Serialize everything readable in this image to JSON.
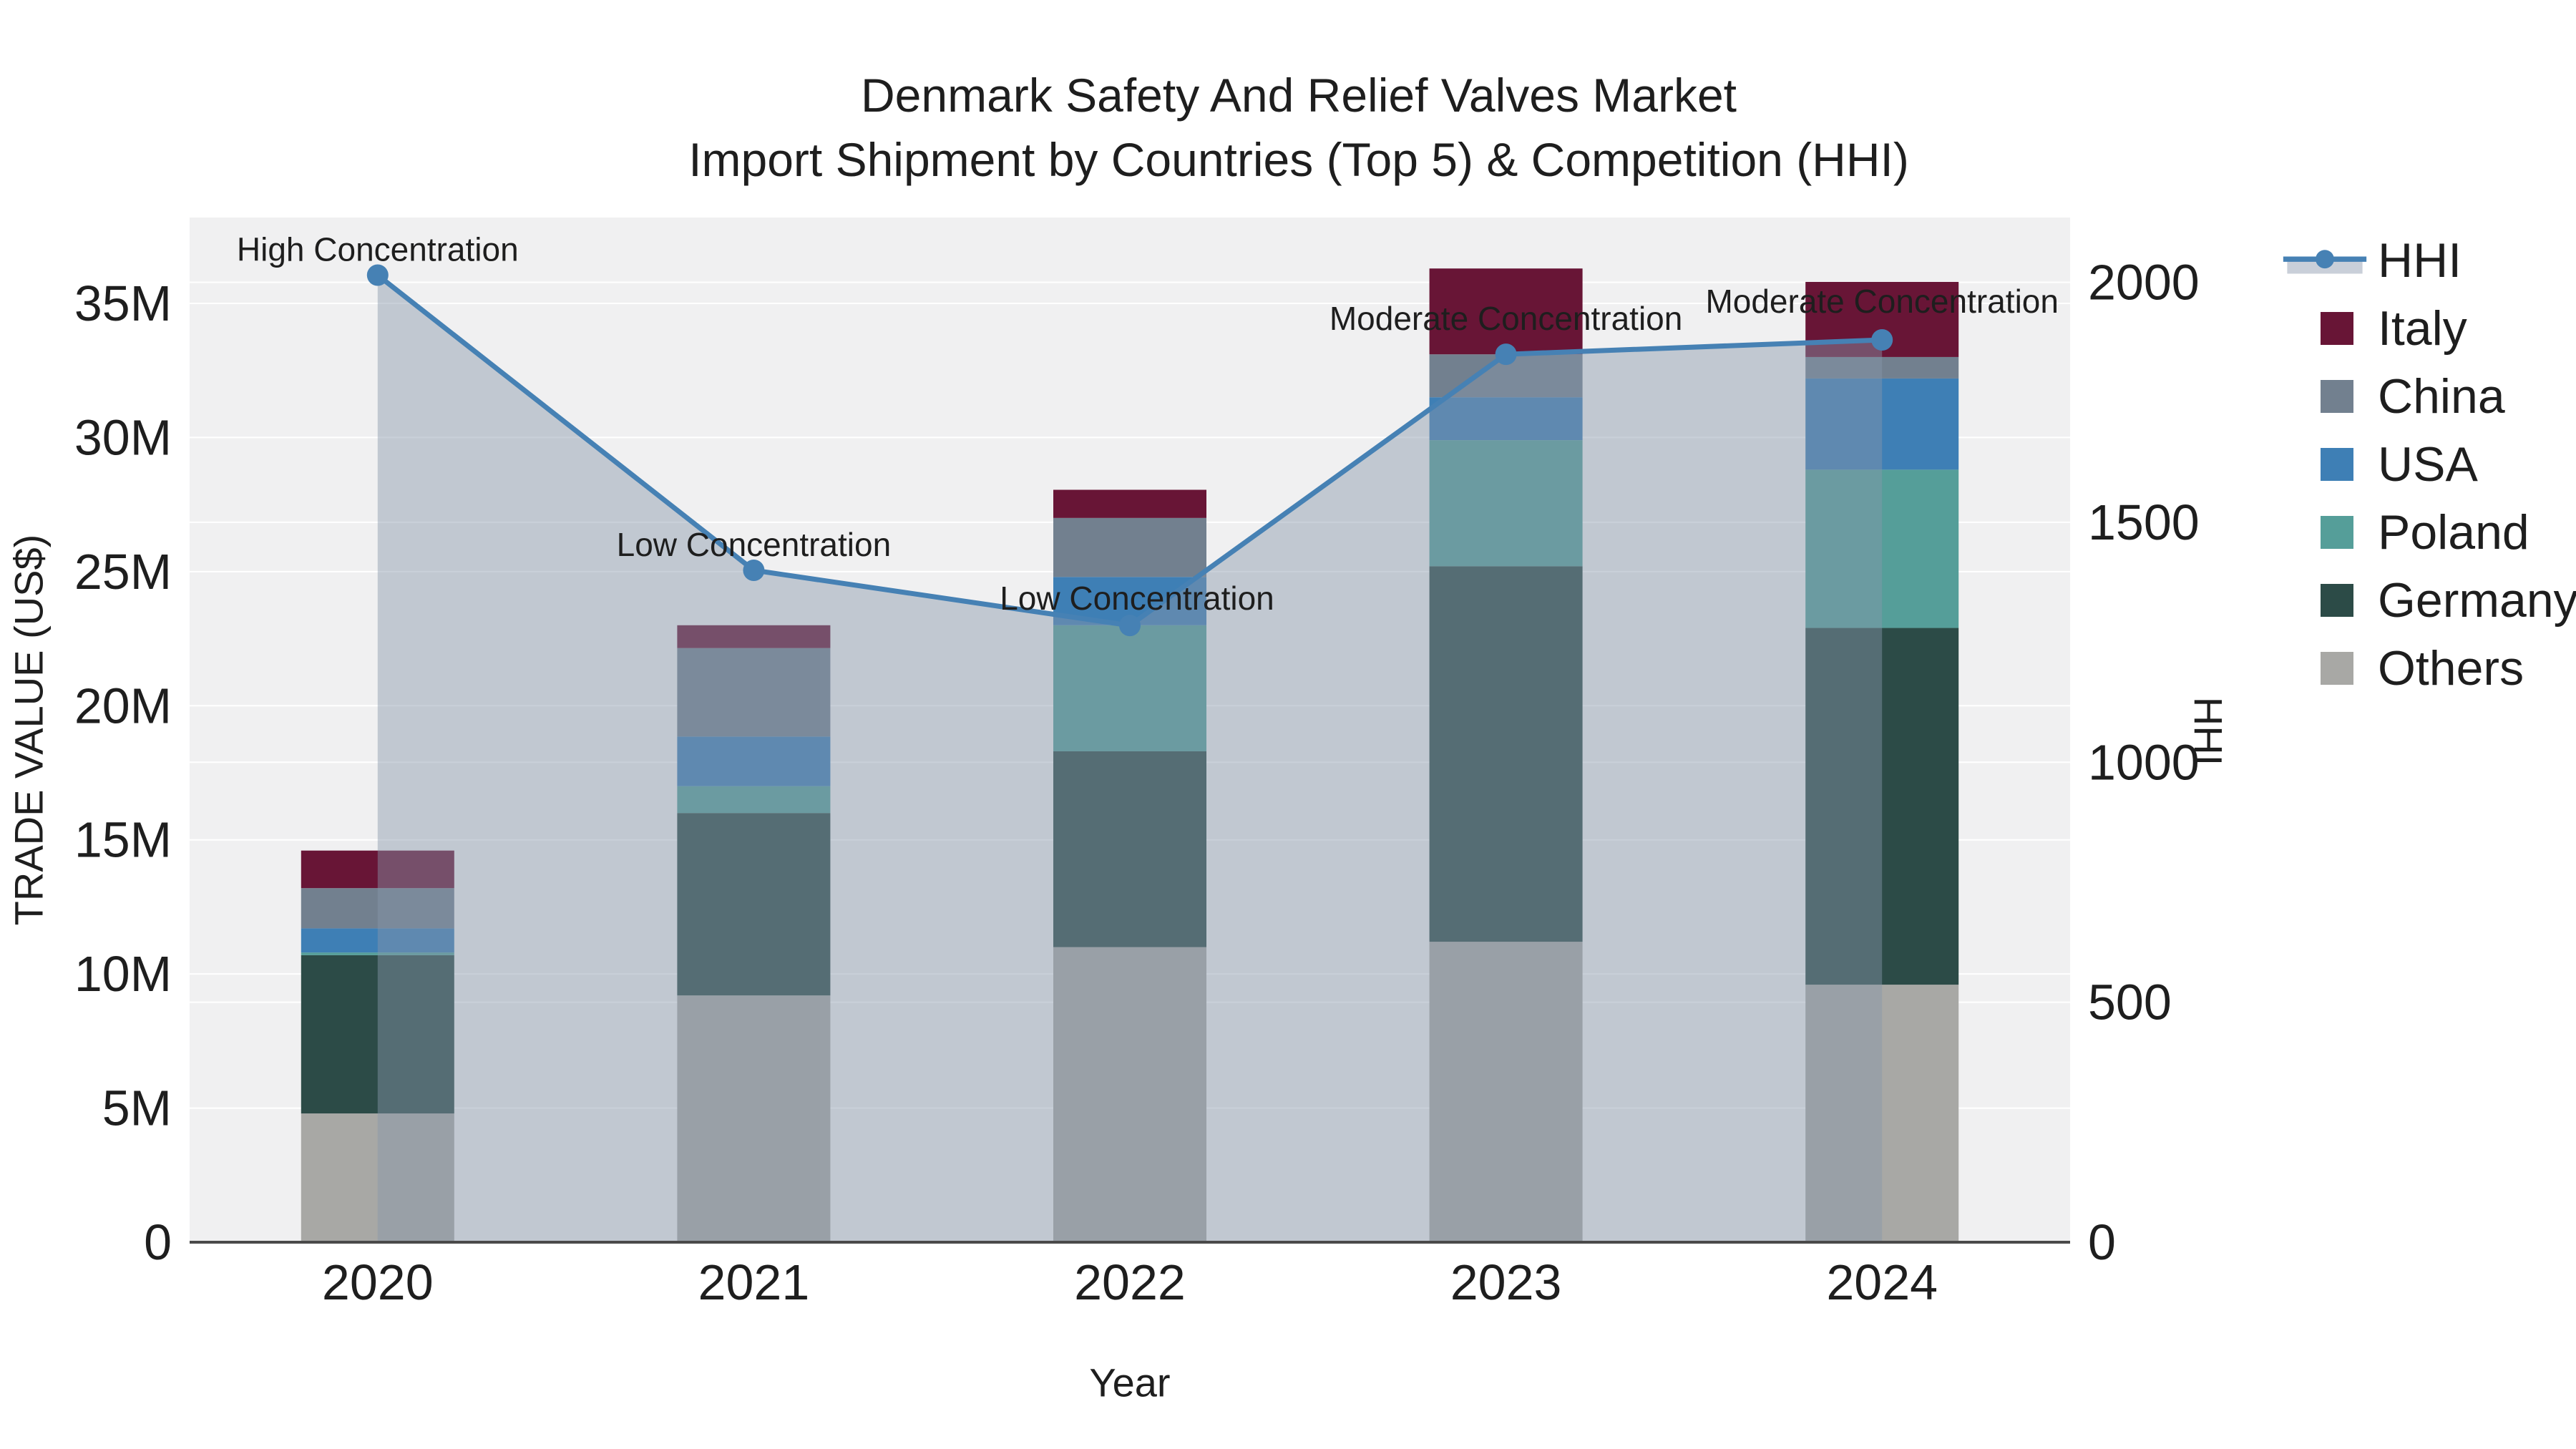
{
  "chart_title": {
    "line1": "Denmark Safety And Relief Valves Market",
    "line2": "Import Shipment by Countries (Top 5) & Competition (HHI)"
  },
  "axes": {
    "x_title": "Year",
    "x_ticks": [
      "2020",
      "2021",
      "2022",
      "2023",
      "2024"
    ],
    "y_left_title": "TRADE VALUE (US$)",
    "y_left_tick_labels": [
      "0",
      "5M",
      "10M",
      "15M",
      "20M",
      "25M",
      "30M",
      "35M"
    ],
    "y_left_tick_values": [
      0,
      5,
      10,
      15,
      20,
      25,
      30,
      35
    ],
    "y_right_title": "HHI",
    "y_right_tick_labels": [
      "0",
      "500",
      "1000",
      "1500",
      "2000"
    ],
    "y_right_tick_values": [
      0,
      500,
      1000,
      1500,
      2000
    ]
  },
  "legend": {
    "items": [
      {
        "label": "HHI",
        "type": "line",
        "color": "#4681b4",
        "band_color": "#c9cfd9"
      },
      {
        "label": "Italy",
        "type": "square",
        "color": "#681536"
      },
      {
        "label": "China",
        "type": "square",
        "color": "#72808f"
      },
      {
        "label": "USA",
        "type": "square",
        "color": "#3e7fb5"
      },
      {
        "label": "Poland",
        "type": "square",
        "color": "#559e99"
      },
      {
        "label": "Germany",
        "type": "square",
        "color": "#2c4b47"
      },
      {
        "label": "Others",
        "type": "square",
        "color": "#a8a8a5"
      }
    ]
  },
  "chart_data": {
    "type": "combo_stacked_bar_line",
    "categories": [
      "2020",
      "2021",
      "2022",
      "2023",
      "2024"
    ],
    "bar_value_unit": "USD millions",
    "series": [
      {
        "name": "Others",
        "color": "#a8a8a5",
        "values": [
          4.8,
          9.2,
          11.0,
          11.2,
          9.6
        ]
      },
      {
        "name": "Germany",
        "color": "#2c4b47",
        "values": [
          5.9,
          6.8,
          7.3,
          14.0,
          13.3
        ]
      },
      {
        "name": "Poland",
        "color": "#559e99",
        "values": [
          0.1,
          1.0,
          4.7,
          4.7,
          5.9
        ]
      },
      {
        "name": "USA",
        "color": "#3e7fb5",
        "values": [
          0.9,
          1.85,
          1.8,
          1.6,
          3.4
        ]
      },
      {
        "name": "China",
        "color": "#72808f",
        "values": [
          1.5,
          3.3,
          2.2,
          1.6,
          0.8
        ]
      },
      {
        "name": "Italy",
        "color": "#681536",
        "values": [
          1.4,
          0.85,
          1.05,
          3.2,
          2.8
        ]
      }
    ],
    "bar_totals": [
      14.6,
      23.0,
      28.05,
      36.3,
      35.8
    ],
    "line_series": {
      "name": "HHI",
      "color": "#4681b4",
      "fill_color": "rgba(136,150,170,0.45)",
      "values": [
        2015,
        1400,
        1285,
        1850,
        1880
      ]
    },
    "annotations": [
      {
        "text": "High Concentration",
        "category": "2020"
      },
      {
        "text": "Low Concentration",
        "category": "2021"
      },
      {
        "text": "Low Concentration",
        "category": "2022"
      },
      {
        "text": "Moderate Concentration",
        "category": "2023"
      },
      {
        "text": "Moderate Concentration",
        "category": "2024"
      }
    ],
    "xlabel": "Year",
    "ylabel_left": "TRADE VALUE (US$)",
    "ylabel_right": "HHI",
    "ylim_left": [
      0,
      38.2
    ],
    "ylim_right": [
      0,
      2135
    ],
    "grid": true,
    "legend_position": "right"
  },
  "colors": {
    "plot_bg": "#f0f0f1",
    "grid": "#ffffff",
    "axis_line": "#4a4a4a",
    "text": "#1e1e1e"
  }
}
